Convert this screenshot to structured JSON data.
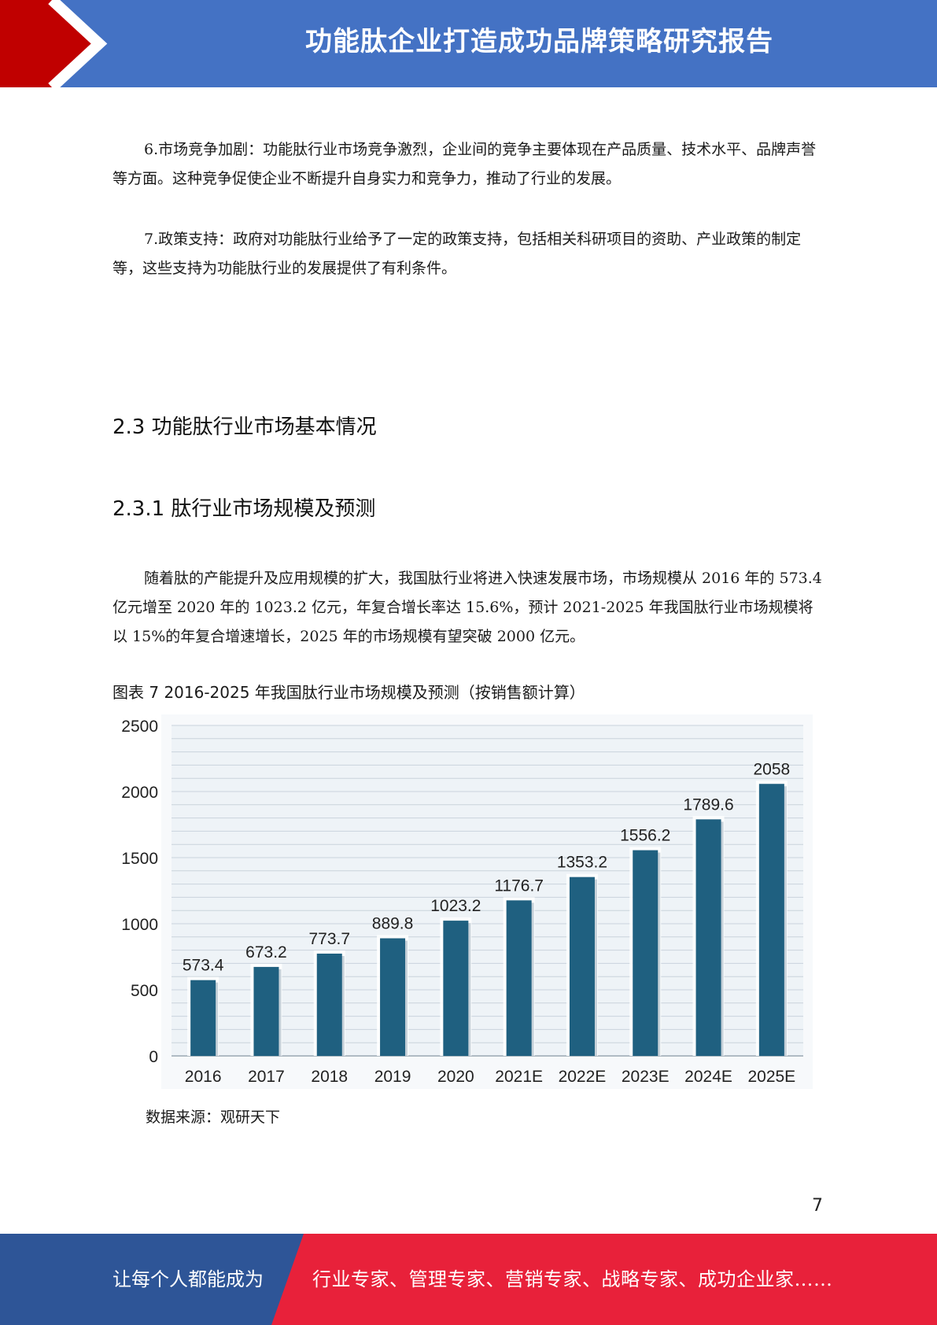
{
  "header": {
    "title": "功能肽企业打造成功品牌策略研究报告",
    "colors": {
      "banner": "#4472c4",
      "arrow": "#c00000"
    }
  },
  "body": {
    "paragraphs": [
      "6.市场竞争加剧：功能肽行业市场竞争激烈，企业间的竞争主要体现在产品质量、技术水平、品牌声誉等方面。这种竞争促使企业不断提升自身实力和竞争力，推动了行业的发展。",
      "7.政策支持：政府对功能肽行业给予了一定的政策支持，包括相关科研项目的资助、产业政策的制定等，这些支持为功能肽行业的发展提供了有利条件。",
      "随着肽的产能提升及应用规模的扩大，我国肽行业将进入快速发展市场，市场规模从 2016 年的 573.4 亿元增至 2020 年的 1023.2 亿元，年复合增长率达 15.6%，预计 2021-2025 年我国肽行业市场规模将以 15%的年复合增速增长，2025 年的市场规模有望突破 2000 亿元。"
    ],
    "headings": {
      "section": "2.3  功能肽行业市场基本情况",
      "subsection": "2.3.1  肽行业市场规模及预测"
    },
    "figure_caption": "图表 7 2016-2025 年我国肽行业市场规模及预测（按销售额计算）",
    "source_note": "数据来源：观研天下"
  },
  "chart_data": {
    "type": "bar",
    "categories": [
      "2016",
      "2017",
      "2018",
      "2019",
      "2020",
      "2021E",
      "2022E",
      "2023E",
      "2024E",
      "2025E"
    ],
    "values": [
      573.4,
      673.2,
      773.7,
      889.8,
      1023.2,
      1176.7,
      1353.2,
      1556.2,
      1789.6,
      2058
    ],
    "value_labels": [
      "573.4",
      "673.2",
      "773.7",
      "889.8",
      "1023.2",
      "1176.7",
      "1353.2",
      "1556.2",
      "1789.6",
      "2058"
    ],
    "y_ticks": [
      0,
      500,
      1000,
      1500,
      2000,
      2500
    ],
    "ylim": [
      0,
      2500
    ],
    "grid": true,
    "title": "",
    "xlabel": "",
    "ylabel": "",
    "colors": {
      "bar": "#1f6080",
      "plot_bg": "#eef3f7",
      "grid": "#c9d3dc"
    }
  },
  "page": {
    "number": "7"
  },
  "footer": {
    "slogan_left": "让每个人都能成为",
    "slogan_right": "行业专家、管理专家、营销专家、战略专家、成功企业家……",
    "colors": {
      "left": "#2e5597",
      "right": "#e8213a"
    }
  }
}
